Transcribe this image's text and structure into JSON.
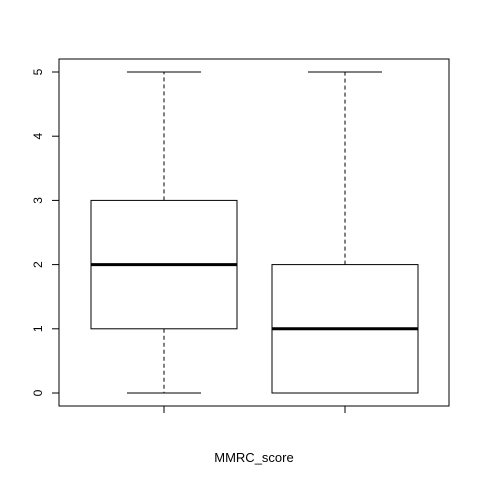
{
  "chart_data": {
    "type": "boxplot",
    "title": "",
    "xlabel": "MMRC_score",
    "ylabel": "",
    "ylim": [
      -0.2,
      5.2
    ],
    "yticks": [
      0,
      1,
      2,
      3,
      4,
      5
    ],
    "xticks_labeled": false,
    "grid": false,
    "colors": {
      "box_fill": "#ffffff",
      "stroke": "#000000",
      "background": "#ffffff"
    },
    "series": [
      {
        "min": 0,
        "q1": 1,
        "median": 2,
        "q3": 3,
        "max": 5
      },
      {
        "min": 0,
        "q1": 0,
        "median": 1,
        "q3": 2,
        "max": 5
      }
    ]
  }
}
